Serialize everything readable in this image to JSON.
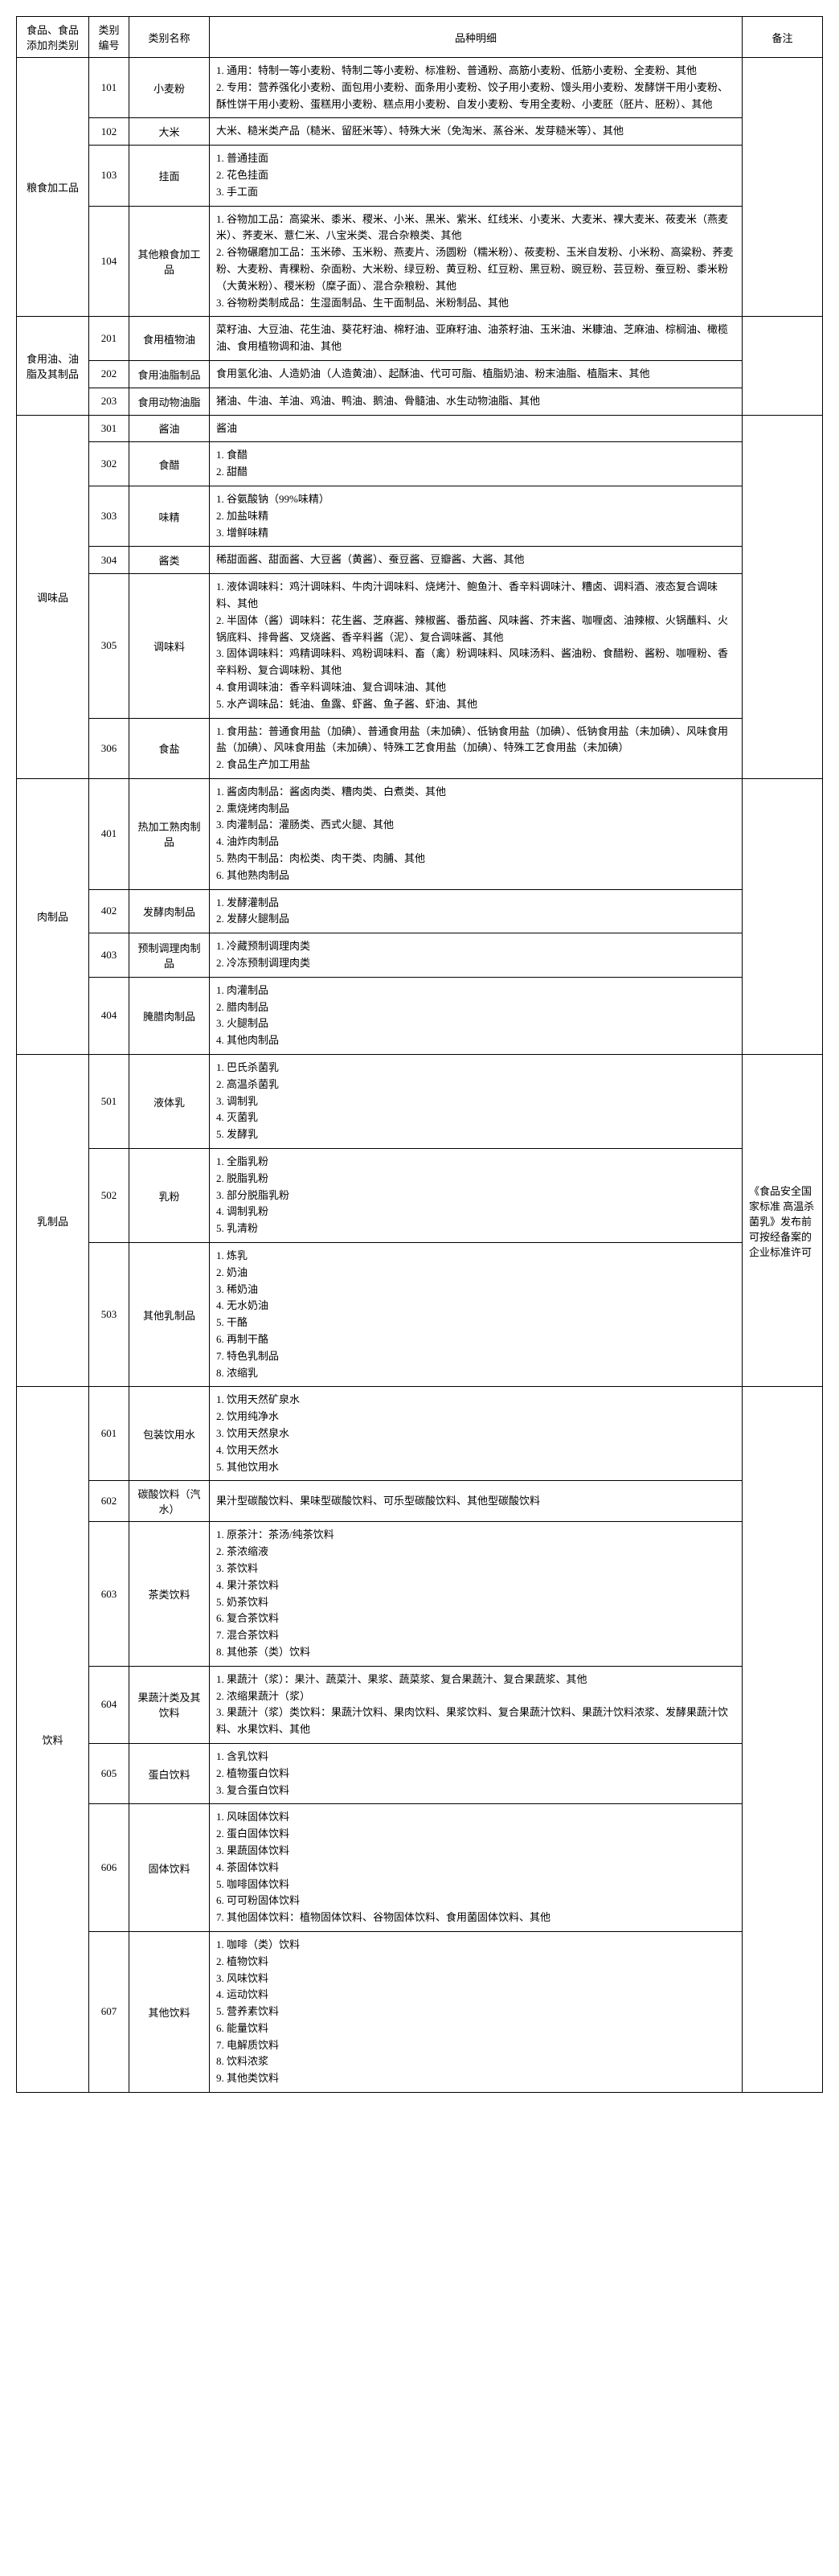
{
  "headers": {
    "category": "食品、食品添加剂类别",
    "code": "类别编号",
    "name": "类别名称",
    "detail": "品种明细",
    "remark": "备注"
  },
  "groups": [
    {
      "category": "粮食加工品",
      "rows": [
        {
          "code": "101",
          "name": "小麦粉",
          "detail": "1. 通用：特制一等小麦粉、特制二等小麦粉、标准粉、普通粉、高筋小麦粉、低筋小麦粉、全麦粉、其他\n2. 专用：营养强化小麦粉、面包用小麦粉、面条用小麦粉、饺子用小麦粉、馒头用小麦粉、发酵饼干用小麦粉、酥性饼干用小麦粉、蛋糕用小麦粉、糕点用小麦粉、自发小麦粉、专用全麦粉、小麦胚（胚片、胚粉）、其他"
        },
        {
          "code": "102",
          "name": "大米",
          "detail": "大米、糙米类产品（糙米、留胚米等）、特殊大米（免淘米、蒸谷米、发芽糙米等）、其他"
        },
        {
          "code": "103",
          "name": "挂面",
          "detail": "1. 普通挂面\n2. 花色挂面\n3. 手工面"
        },
        {
          "code": "104",
          "name": "其他粮食加工品",
          "detail": "1. 谷物加工品：高粱米、黍米、稷米、小米、黑米、紫米、红线米、小麦米、大麦米、裸大麦米、莜麦米（燕麦米）、荞麦米、薏仁米、八宝米类、混合杂粮类、其他\n2. 谷物碾磨加工品：玉米碜、玉米粉、燕麦片、汤圆粉（糯米粉）、莜麦粉、玉米自发粉、小米粉、高粱粉、荞麦粉、大麦粉、青稞粉、杂面粉、大米粉、绿豆粉、黄豆粉、红豆粉、黑豆粉、豌豆粉、芸豆粉、蚕豆粉、黍米粉（大黄米粉）、稷米粉（糜子面）、混合杂粮粉、其他\n3. 谷物粉类制成品：生湿面制品、生干面制品、米粉制品、其他"
        }
      ]
    },
    {
      "category": "食用油、油脂及其制品",
      "rows": [
        {
          "code": "201",
          "name": "食用植物油",
          "detail": "菜籽油、大豆油、花生油、葵花籽油、棉籽油、亚麻籽油、油茶籽油、玉米油、米糠油、芝麻油、棕榈油、橄榄油、食用植物调和油、其他"
        },
        {
          "code": "202",
          "name": "食用油脂制品",
          "detail": "食用氢化油、人造奶油（人造黄油）、起酥油、代可可脂、植脂奶油、粉末油脂、植脂末、其他"
        },
        {
          "code": "203",
          "name": "食用动物油脂",
          "detail": "猪油、牛油、羊油、鸡油、鸭油、鹅油、骨髓油、水生动物油脂、其他"
        }
      ]
    },
    {
      "category": "调味品",
      "rows": [
        {
          "code": "301",
          "name": "酱油",
          "detail": "酱油"
        },
        {
          "code": "302",
          "name": "食醋",
          "detail": "1. 食醋\n2. 甜醋"
        },
        {
          "code": "303",
          "name": "味精",
          "detail": "1. 谷氨酸钠（99%味精）\n2. 加盐味精\n3. 增鲜味精"
        },
        {
          "code": "304",
          "name": "酱类",
          "detail": "稀甜面酱、甜面酱、大豆酱（黄酱）、蚕豆酱、豆瓣酱、大酱、其他"
        },
        {
          "code": "305",
          "name": "调味料",
          "detail": "1. 液体调味料：鸡汁调味料、牛肉汁调味料、烧烤汁、鲍鱼汁、香辛料调味汁、糟卤、调料酒、液态复合调味料、其他\n2. 半固体（酱）调味料：花生酱、芝麻酱、辣椒酱、番茄酱、风味酱、芥末酱、咖喱卤、油辣椒、火锅蘸料、火锅底料、排骨酱、叉烧酱、香辛料酱（泥）、复合调味酱、其他\n3. 固体调味料：鸡精调味料、鸡粉调味料、畜（禽）粉调味料、风味汤料、酱油粉、食醋粉、酱粉、咖喱粉、香辛料粉、复合调味粉、其他\n4. 食用调味油：香辛料调味油、复合调味油、其他\n5. 水产调味品：蚝油、鱼露、虾酱、鱼子酱、虾油、其他"
        },
        {
          "code": "306",
          "name": "食盐",
          "detail": "1. 食用盐：普通食用盐（加碘）、普通食用盐（未加碘）、低钠食用盐（加碘）、低钠食用盐（未加碘）、风味食用盐（加碘）、风味食用盐（未加碘）、特殊工艺食用盐（加碘）、特殊工艺食用盐（未加碘）\n2. 食品生产加工用盐"
        }
      ]
    },
    {
      "category": "肉制品",
      "rows": [
        {
          "code": "401",
          "name": "热加工熟肉制品",
          "detail": "1. 酱卤肉制品：酱卤肉类、糟肉类、白煮类、其他\n2. 熏烧烤肉制品\n3. 肉灌制品：灌肠类、西式火腿、其他\n4. 油炸肉制品\n5. 熟肉干制品：肉松类、肉干类、肉脯、其他\n6. 其他熟肉制品"
        },
        {
          "code": "402",
          "name": "发酵肉制品",
          "detail": "1. 发酵灌制品\n2. 发酵火腿制品"
        },
        {
          "code": "403",
          "name": "预制调理肉制品",
          "detail": "1. 冷藏预制调理肉类\n2. 冷冻预制调理肉类"
        },
        {
          "code": "404",
          "name": "腌腊肉制品",
          "detail": "1. 肉灌制品\n2. 腊肉制品\n3. 火腿制品\n4. 其他肉制品"
        }
      ]
    },
    {
      "category": "乳制品",
      "rows": [
        {
          "code": "501",
          "name": "液体乳",
          "detail": "1. 巴氏杀菌乳\n2. 高温杀菌乳\n3. 调制乳\n4. 灭菌乳\n5. 发酵乳",
          "remark": "《食品安全国家标准 高温杀菌乳》发布前可按经备案的企业标准许可"
        },
        {
          "code": "502",
          "name": "乳粉",
          "detail": "1. 全脂乳粉\n2. 脱脂乳粉\n3. 部分脱脂乳粉\n4. 调制乳粉\n5. 乳清粉"
        },
        {
          "code": "503",
          "name": "其他乳制品",
          "detail": "1. 炼乳\n2. 奶油\n3. 稀奶油\n4. 无水奶油\n5. 干酪\n6. 再制干酪\n7. 特色乳制品\n8. 浓缩乳"
        }
      ]
    },
    {
      "category": "饮料",
      "rows": [
        {
          "code": "601",
          "name": "包装饮用水",
          "detail": "1. 饮用天然矿泉水\n2. 饮用纯净水\n3. 饮用天然泉水\n4. 饮用天然水\n5. 其他饮用水"
        },
        {
          "code": "602",
          "name": "碳酸饮料（汽水）",
          "detail": "果汁型碳酸饮料、果味型碳酸饮料、可乐型碳酸饮料、其他型碳酸饮料"
        },
        {
          "code": "603",
          "name": "茶类饮料",
          "detail": "1. 原茶汁：茶汤/纯茶饮料\n2. 茶浓缩液\n3. 茶饮料\n4. 果汁茶饮料\n5. 奶茶饮料\n6. 复合茶饮料\n7. 混合茶饮料\n8. 其他茶（类）饮料"
        },
        {
          "code": "604",
          "name": "果蔬汁类及其饮料",
          "detail": "1. 果蔬汁（浆）：果汁、蔬菜汁、果浆、蔬菜浆、复合果蔬汁、复合果蔬浆、其他\n2. 浓缩果蔬汁（浆）\n3. 果蔬汁（浆）类饮料：果蔬汁饮料、果肉饮料、果浆饮料、复合果蔬汁饮料、果蔬汁饮料浓浆、发酵果蔬汁饮料、水果饮料、其他"
        },
        {
          "code": "605",
          "name": "蛋白饮料",
          "detail": "1. 含乳饮料\n2. 植物蛋白饮料\n3. 复合蛋白饮料"
        },
        {
          "code": "606",
          "name": "固体饮料",
          "detail": "1. 风味固体饮料\n2. 蛋白固体饮料\n3. 果蔬固体饮料\n4. 茶固体饮料\n5. 咖啡固体饮料\n6. 可可粉固体饮料\n7. 其他固体饮料：植物固体饮料、谷物固体饮料、食用菌固体饮料、其他"
        },
        {
          "code": "607",
          "name": "其他饮料",
          "detail": "1. 咖啡（类）饮料\n2. 植物饮料\n3. 风味饮料\n4. 运动饮料\n5. 营养素饮料\n6. 能量饮料\n7. 电解质饮料\n8. 饮料浓浆\n9. 其他类饮料"
        }
      ]
    }
  ]
}
